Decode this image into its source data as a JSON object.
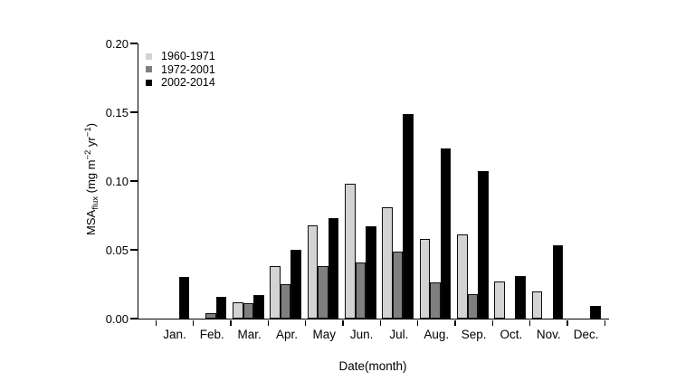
{
  "chart_data": {
    "type": "bar",
    "title": "",
    "xlabel": "Date(month)",
    "ylabel": "MSAflux (mg m-2 yr-1)",
    "ylabel_parts": {
      "base": "MSA",
      "sub": "flux",
      "rest1": " (mg m",
      "sup1": "−2",
      "rest2": " yr",
      "sup2": "−1",
      "rest3": ")"
    },
    "categories": [
      "Jan.",
      "Feb.",
      "Mar.",
      "Apr.",
      "May",
      "Jun.",
      "Jul.",
      "Aug.",
      "Sep.",
      "Oct.",
      "Nov.",
      "Dec."
    ],
    "series": [
      {
        "name": "1960-1971",
        "color": "#d3d3d3",
        "values": [
          0,
          0,
          0.012,
          0.038,
          0.068,
          0.098,
          0.081,
          0.058,
          0.061,
          0.027,
          0.02,
          0
        ]
      },
      {
        "name": "1972-2001",
        "color": "#7f7f7f",
        "values": [
          0,
          0.004,
          0.011,
          0.025,
          0.038,
          0.041,
          0.049,
          0.026,
          0.018,
          0,
          0,
          0
        ]
      },
      {
        "name": "2002-2014",
        "color": "#000000",
        "values": [
          0.03,
          0.016,
          0.017,
          0.05,
          0.073,
          0.067,
          0.149,
          0.124,
          0.107,
          0.031,
          0.053,
          0.009
        ]
      }
    ],
    "y_ticks": [
      0.0,
      0.05,
      0.1,
      0.15,
      0.2
    ],
    "y_tick_labels": [
      "0.00",
      "0.05",
      "0.10",
      "0.15",
      "0.20"
    ],
    "ylim": [
      0,
      0.2
    ],
    "grid": false,
    "legend_position": "top-left-inside",
    "axis_color": "#000000",
    "bar_border_color": "#0d0d0d",
    "background_color": "#ffffff"
  }
}
